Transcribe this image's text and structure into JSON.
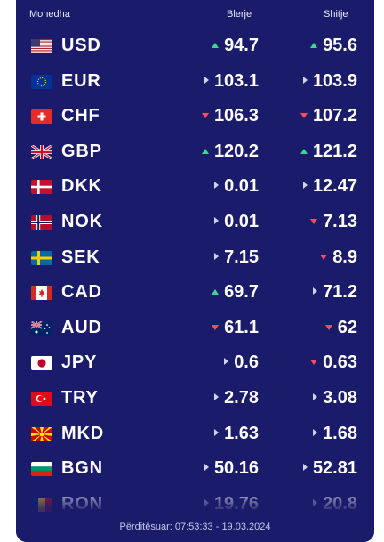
{
  "header": {
    "currency": "Monedha",
    "buy": "Blerje",
    "sell": "Shitje"
  },
  "rows": [
    {
      "code": "USD",
      "flag": "us-flag",
      "buy": "94.7",
      "buy_trend": "up",
      "sell": "95.6",
      "sell_trend": "up"
    },
    {
      "code": "EUR",
      "flag": "eu-flag",
      "buy": "103.1",
      "buy_trend": "flat",
      "sell": "103.9",
      "sell_trend": "flat"
    },
    {
      "code": "CHF",
      "flag": "ch-flag",
      "buy": "106.3",
      "buy_trend": "down",
      "sell": "107.2",
      "sell_trend": "down"
    },
    {
      "code": "GBP",
      "flag": "gb-flag",
      "buy": "120.2",
      "buy_trend": "up",
      "sell": "121.2",
      "sell_trend": "up"
    },
    {
      "code": "DKK",
      "flag": "dk-flag",
      "buy": "0.01",
      "buy_trend": "flat",
      "sell": "12.47",
      "sell_trend": "flat"
    },
    {
      "code": "NOK",
      "flag": "no-flag",
      "buy": "0.01",
      "buy_trend": "flat",
      "sell": "7.13",
      "sell_trend": "down"
    },
    {
      "code": "SEK",
      "flag": "se-flag",
      "buy": "7.15",
      "buy_trend": "flat",
      "sell": "8.9",
      "sell_trend": "down"
    },
    {
      "code": "CAD",
      "flag": "ca-flag",
      "buy": "69.7",
      "buy_trend": "up",
      "sell": "71.2",
      "sell_trend": "flat"
    },
    {
      "code": "AUD",
      "flag": "au-flag",
      "buy": "61.1",
      "buy_trend": "down",
      "sell": "62",
      "sell_trend": "down"
    },
    {
      "code": "JPY",
      "flag": "jp-flag",
      "buy": "0.6",
      "buy_trend": "flat",
      "sell": "0.63",
      "sell_trend": "down"
    },
    {
      "code": "TRY",
      "flag": "tr-flag",
      "buy": "2.78",
      "buy_trend": "flat",
      "sell": "3.08",
      "sell_trend": "flat"
    },
    {
      "code": "MKD",
      "flag": "mk-flag",
      "buy": "1.63",
      "buy_trend": "flat",
      "sell": "1.68",
      "sell_trend": "flat"
    },
    {
      "code": "BGN",
      "flag": "bg-flag",
      "buy": "50.16",
      "buy_trend": "flat",
      "sell": "52.81",
      "sell_trend": "flat"
    },
    {
      "code": "RON",
      "flag": "ro-flag",
      "buy": "19.76",
      "buy_trend": "flat",
      "sell": "20.8",
      "sell_trend": "flat"
    }
  ],
  "footer": {
    "updated": "Përditësuar: 07:53:33 - 19.03.2024"
  },
  "colors": {
    "panel": "#1b1b6b",
    "up": "#3dd68c",
    "down": "#ff4d5e",
    "flat": "#cfd2ee"
  }
}
